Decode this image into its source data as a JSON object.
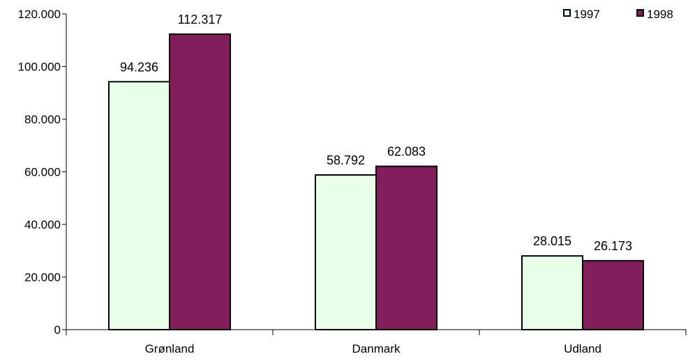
{
  "chart_data": {
    "type": "bar",
    "title": "",
    "xlabel": "",
    "ylabel": "",
    "categories": [
      "Grønland",
      "Danmark",
      "Udland"
    ],
    "series": [
      {
        "name": "1997",
        "values": [
          94236,
          58792,
          28015
        ],
        "labels": [
          "94.236",
          "58.792",
          "28.015"
        ],
        "color": "#E8FFE8"
      },
      {
        "name": "1998",
        "values": [
          112317,
          62083,
          26173
        ],
        "labels": [
          "112.317",
          "62.083",
          "26.173"
        ],
        "color": "#821E5A"
      }
    ],
    "ylim": [
      0,
      120000
    ],
    "yticks": [
      0,
      20000,
      40000,
      60000,
      80000,
      100000,
      120000
    ],
    "ytick_labels": [
      "0",
      "20.000",
      "40.000",
      "60.000",
      "80.000",
      "100.000",
      "120.000"
    ],
    "grid": false,
    "legend_position": "top-right",
    "colors": {
      "axis": "#000000",
      "bar_outline": "#000000"
    }
  }
}
